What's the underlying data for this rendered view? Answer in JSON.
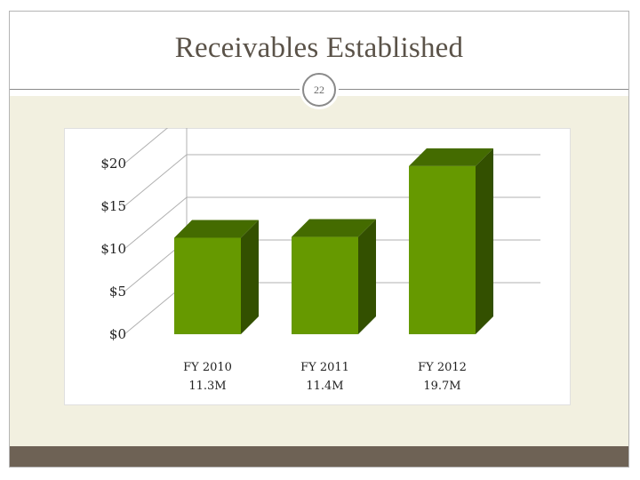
{
  "slide": {
    "title": "Receivables Established",
    "page_number": "22"
  },
  "colors": {
    "bar_front": "#669900",
    "bar_side": "#335000",
    "bar_top": "#446b00",
    "footer_band": "#6e6255",
    "content_band": "#f2f0e0"
  },
  "chart_data": {
    "type": "bar",
    "categories": [
      "FY 2010",
      "FY 2011",
      "FY 2012"
    ],
    "value_labels": [
      "11.3M",
      "11.4M",
      "19.7M"
    ],
    "values": [
      11.3,
      11.4,
      19.7
    ],
    "units": "millions of dollars",
    "y_tick_labels": [
      "$0",
      "$5",
      "$10",
      "$15",
      "$20"
    ],
    "y_ticks": [
      0,
      5,
      10,
      15,
      20
    ],
    "ylim": [
      0,
      20
    ],
    "grid": true,
    "legend": "none",
    "style": "3d"
  }
}
